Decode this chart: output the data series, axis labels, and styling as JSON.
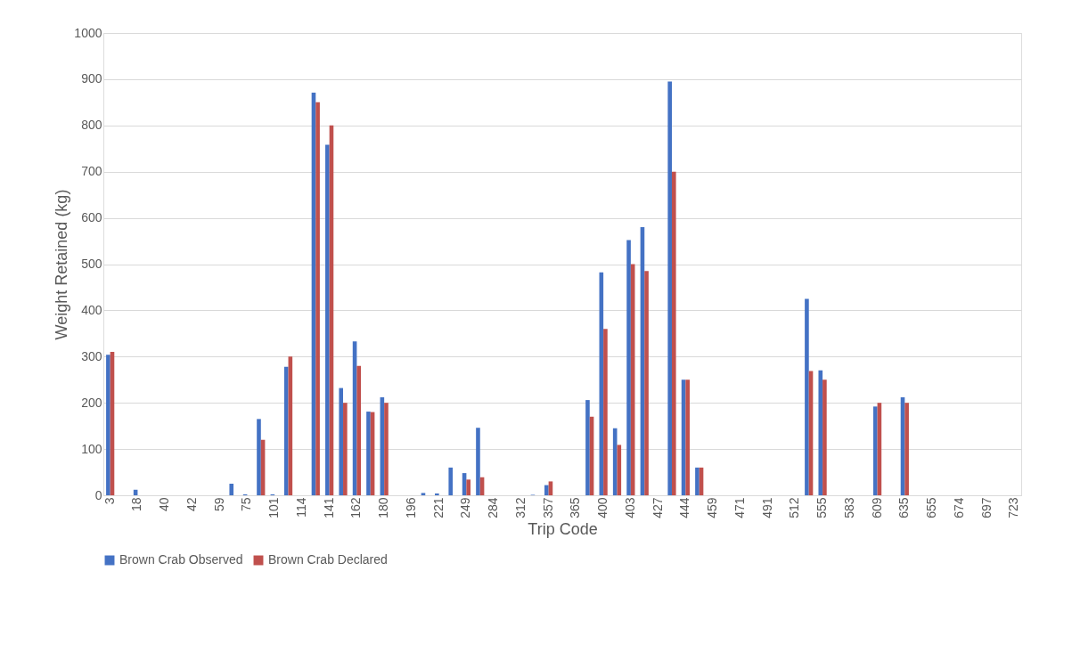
{
  "chart_data": {
    "type": "bar",
    "xlabel": "Trip Code",
    "ylabel": "Weight Retained (kg)",
    "categories": [
      "3",
      null,
      "18",
      null,
      "40",
      null,
      "42",
      null,
      "59",
      null,
      "75",
      null,
      "101",
      null,
      "114",
      null,
      "141",
      null,
      "162",
      null,
      "180",
      null,
      "196",
      null,
      "221",
      null,
      "249",
      null,
      "284",
      null,
      "312",
      null,
      "357",
      null,
      "365",
      null,
      "400",
      null,
      "403",
      null,
      "427",
      null,
      "444",
      null,
      "459",
      null,
      "471",
      null,
      "491",
      null,
      "512",
      null,
      "555",
      null,
      "583",
      null,
      "609",
      null,
      "635",
      null,
      "655",
      null,
      "674",
      null,
      "697",
      null,
      "723"
    ],
    "series": [
      {
        "name": "Brown Crab Observed",
        "color": "#4472c4",
        "values": [
          304,
          0,
          12,
          0,
          0,
          0,
          0,
          0,
          0,
          25,
          2,
          165,
          2,
          278,
          0,
          871,
          758,
          232,
          333,
          181,
          212,
          0,
          0,
          5,
          4,
          60,
          48,
          146,
          0,
          0,
          0,
          1,
          22,
          0,
          0,
          206,
          482,
          145,
          552,
          580,
          0,
          895,
          250,
          60,
          0,
          0,
          0,
          0,
          0,
          0,
          0,
          425,
          270,
          0,
          0,
          0,
          192,
          0,
          212,
          0,
          0,
          0,
          0,
          0,
          0,
          0,
          0
        ]
      },
      {
        "name": "Brown Crab Declared",
        "color": "#c0504d",
        "values": [
          310,
          0,
          0,
          0,
          0,
          0,
          0,
          0,
          0,
          0,
          0,
          120,
          0,
          300,
          0,
          850,
          800,
          200,
          280,
          180,
          200,
          0,
          0,
          0,
          0,
          0,
          34,
          39,
          0,
          0,
          0,
          0,
          30,
          0,
          0,
          170,
          360,
          109,
          500,
          485,
          0,
          700,
          250,
          60,
          0,
          0,
          0,
          0,
          0,
          0,
          0,
          269,
          250,
          0,
          0,
          0,
          200,
          0,
          200,
          0,
          0,
          0,
          0,
          0,
          0,
          0,
          0
        ]
      }
    ],
    "ylim": [
      0,
      1000
    ],
    "yticks": [
      0,
      100,
      200,
      300,
      400,
      500,
      600,
      700,
      800,
      900,
      1000
    ],
    "grid": "y",
    "legend": "bottom"
  }
}
